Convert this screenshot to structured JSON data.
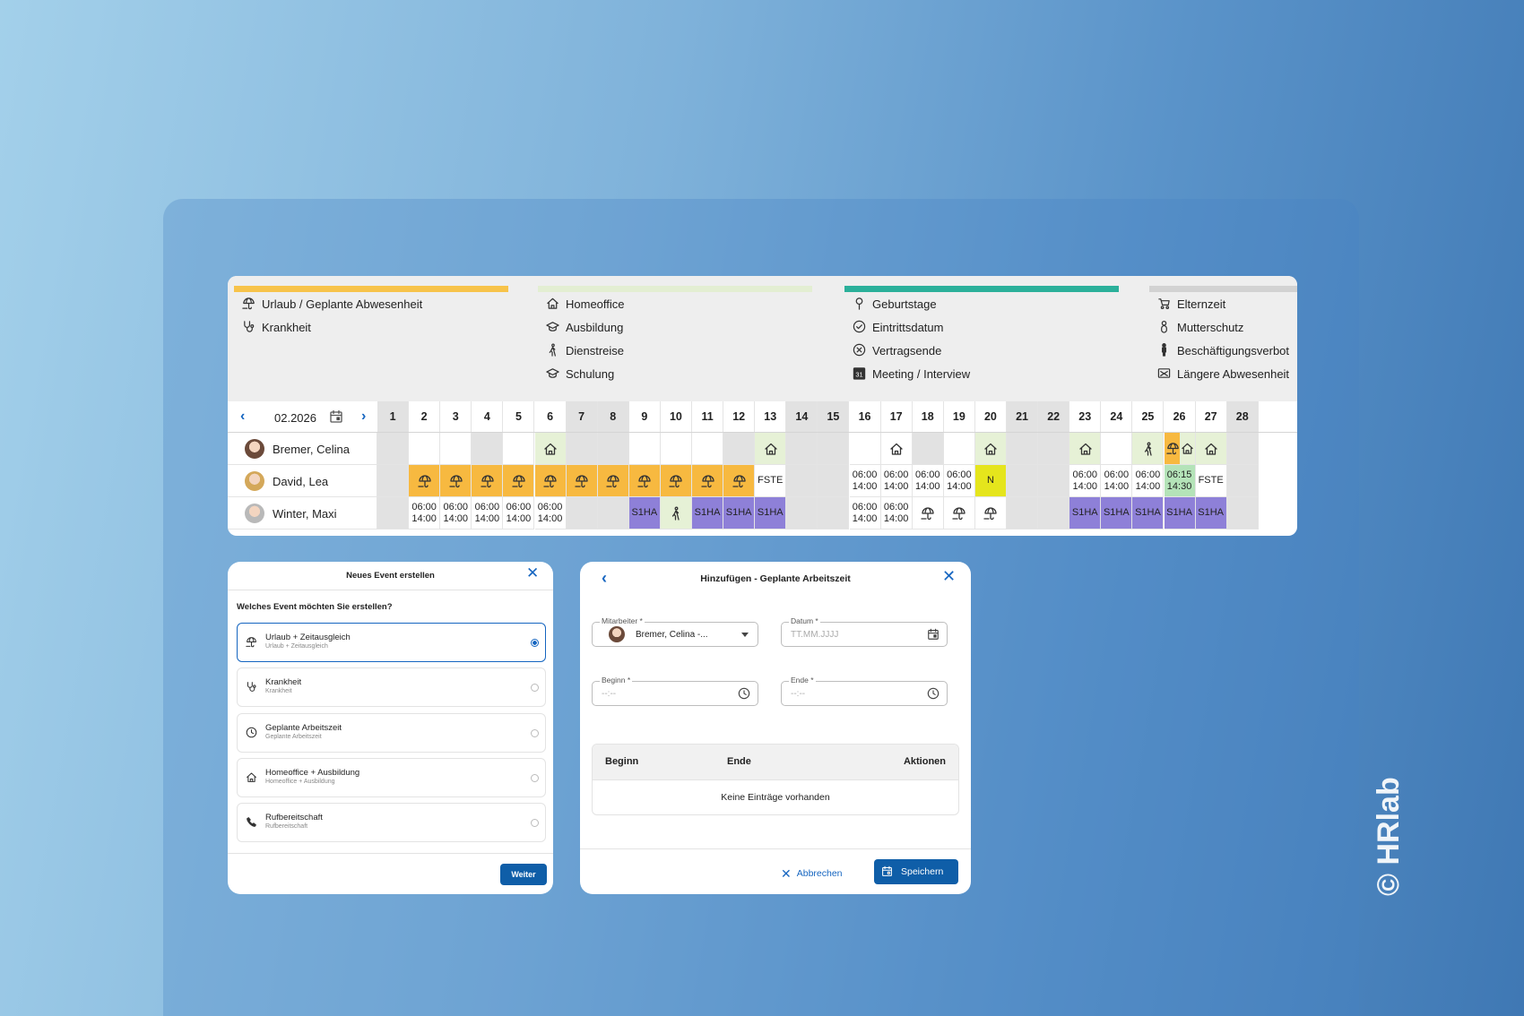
{
  "legend": [
    {
      "color": "#f7c34a",
      "items": [
        {
          "icon": "umbrella",
          "label": "Urlaub / Geplante Abwesenheit"
        },
        {
          "icon": "steth",
          "label": "Krankheit"
        }
      ]
    },
    {
      "color": "#e3eed2",
      "items": [
        {
          "icon": "home",
          "label": "Homeoffice"
        },
        {
          "icon": "cap",
          "label": "Ausbildung"
        },
        {
          "icon": "walk",
          "label": "Dienstreise"
        },
        {
          "icon": "cap",
          "label": "Schulung"
        }
      ]
    },
    {
      "color": "#2bb09a",
      "items": [
        {
          "icon": "pin",
          "label": "Geburtstage"
        },
        {
          "icon": "check",
          "label": "Eintrittsdatum"
        },
        {
          "icon": "xcircle",
          "label": "Vertragsende"
        },
        {
          "icon": "cal31",
          "icon_text": "31",
          "label": "Meeting / Interview"
        }
      ]
    },
    {
      "color": "#d2d2d2",
      "items": [
        {
          "icon": "stroller",
          "label": "Elternzeit"
        },
        {
          "icon": "baby",
          "label": "Mutterschutz"
        },
        {
          "icon": "person",
          "label": "Beschäftigungsverbot"
        },
        {
          "icon": "absent",
          "label": "Längere Abwesenheit"
        }
      ]
    }
  ],
  "calendar": {
    "month": "02.2026",
    "days": [
      1,
      2,
      3,
      4,
      5,
      6,
      7,
      8,
      9,
      10,
      11,
      12,
      13,
      14,
      15,
      16,
      17,
      18,
      19,
      20,
      21,
      22,
      23,
      24,
      25,
      26,
      27,
      28
    ],
    "weekend": [
      1,
      7,
      8,
      14,
      15,
      21,
      22,
      28
    ],
    "weekend_color": "#e2e2e2",
    "rows": [
      {
        "name": "Bremer, Celina",
        "cells": [
          {
            "day": 4,
            "bg": "#e2e2e2"
          },
          {
            "day": 6,
            "bg": "#e6f1d6",
            "icon": "home"
          },
          {
            "day": 12,
            "bg": "#e2e2e2"
          },
          {
            "day": 13,
            "bg": "#e6f1d6",
            "icon": "home"
          },
          {
            "day": 17,
            "icon": "home"
          },
          {
            "day": 18,
            "bg": "#e2e2e2"
          },
          {
            "day": 20,
            "bg": "#e6f1d6",
            "icon": "home"
          },
          {
            "day": 23,
            "bg": "#e6f1d6",
            "icon": "home"
          },
          {
            "day": 25,
            "bg": "#e6f1d6",
            "icon": "walk"
          },
          {
            "day": 26,
            "bg": "#f7b940",
            "bg2": "#e6f1d6",
            "icon": "umbrella",
            "icon2": "home"
          },
          {
            "day": 27,
            "bg": "#e6f1d6",
            "icon": "home"
          }
        ]
      },
      {
        "name": "David, Lea",
        "cells": [
          {
            "day": 2,
            "bg": "#f7b940",
            "icon": "umbrella"
          },
          {
            "day": 3,
            "bg": "#f7b940",
            "icon": "umbrella"
          },
          {
            "day": 4,
            "bg": "#f7b940",
            "icon": "umbrella"
          },
          {
            "day": 5,
            "bg": "#f7b940",
            "icon": "umbrella"
          },
          {
            "day": 6,
            "bg": "#f7b940",
            "icon": "umbrella"
          },
          {
            "day": 7,
            "bg": "#f7b940",
            "icon": "umbrella"
          },
          {
            "day": 8,
            "bg": "#f7b940",
            "icon": "umbrella"
          },
          {
            "day": 9,
            "bg": "#f7b940",
            "icon": "umbrella"
          },
          {
            "day": 10,
            "bg": "#f7b940",
            "icon": "umbrella"
          },
          {
            "day": 11,
            "bg": "#f7b940",
            "icon": "umbrella"
          },
          {
            "day": 12,
            "bg": "#f7b940",
            "icon": "umbrella"
          },
          {
            "day": 13,
            "text": [
              "FSTE"
            ]
          },
          {
            "day": 16,
            "text": [
              "06:00",
              "14:00"
            ]
          },
          {
            "day": 17,
            "text": [
              "06:00",
              "14:00"
            ]
          },
          {
            "day": 18,
            "text": [
              "06:00",
              "14:00"
            ]
          },
          {
            "day": 19,
            "text": [
              "06:00",
              "14:00"
            ]
          },
          {
            "day": 20,
            "bg": "#e5e51c",
            "text": [
              "N"
            ]
          },
          {
            "day": 23,
            "text": [
              "06:00",
              "14:00"
            ]
          },
          {
            "day": 24,
            "text": [
              "06:00",
              "14:00"
            ]
          },
          {
            "day": 25,
            "text": [
              "06:00",
              "14:00"
            ]
          },
          {
            "day": 26,
            "bg": "#b4e3b8",
            "text": [
              "06:15",
              "14:30"
            ]
          },
          {
            "day": 27,
            "text": [
              "FSTE"
            ]
          }
        ]
      },
      {
        "name": "Winter, Maxi",
        "cells": [
          {
            "day": 2,
            "text": [
              "06:00",
              "14:00"
            ]
          },
          {
            "day": 3,
            "text": [
              "06:00",
              "14:00"
            ]
          },
          {
            "day": 4,
            "text": [
              "06:00",
              "14:00"
            ]
          },
          {
            "day": 5,
            "text": [
              "06:00",
              "14:00"
            ]
          },
          {
            "day": 6,
            "text": [
              "06:00",
              "14:00"
            ]
          },
          {
            "day": 9,
            "bg": "#8e80d8",
            "text": [
              "S1HA"
            ]
          },
          {
            "day": 10,
            "bg": "#e6f1d6",
            "icon": "walk"
          },
          {
            "day": 11,
            "bg": "#8e80d8",
            "text": [
              "S1HA"
            ]
          },
          {
            "day": 12,
            "bg": "#8e80d8",
            "text": [
              "S1HA"
            ]
          },
          {
            "day": 13,
            "bg": "#8e80d8",
            "text": [
              "S1HA"
            ]
          },
          {
            "day": 16,
            "text": [
              "06:00",
              "14:00"
            ]
          },
          {
            "day": 17,
            "text": [
              "06:00",
              "14:00"
            ]
          },
          {
            "day": 18,
            "icon": "umbrella"
          },
          {
            "day": 19,
            "icon": "umbrella"
          },
          {
            "day": 20,
            "icon": "umbrella"
          },
          {
            "day": 23,
            "bg": "#8e80d8",
            "text": [
              "S1HA"
            ]
          },
          {
            "day": 24,
            "bg": "#8e80d8",
            "text": [
              "S1HA"
            ]
          },
          {
            "day": 25,
            "bg": "#8e80d8",
            "text": [
              "S1HA"
            ]
          },
          {
            "day": 26,
            "bg": "#8e80d8",
            "text": [
              "S1HA"
            ]
          },
          {
            "day": 27,
            "bg": "#8e80d8",
            "text": [
              "S1HA"
            ]
          }
        ]
      }
    ]
  },
  "dialog_event": {
    "title": "Neues Event erstellen",
    "question": "Welches Event möchten Sie erstellen?",
    "options": [
      {
        "icon": "umbrella",
        "label": "Urlaub + Zeitausgleich",
        "sublabel": "Urlaub + Zeitausgleich",
        "selected": true
      },
      {
        "icon": "steth",
        "label": "Krankheit",
        "sublabel": "Krankheit",
        "selected": false
      },
      {
        "icon": "clock",
        "label": "Geplante Arbeitszeit",
        "sublabel": "Geplante Arbeitszeit",
        "selected": false
      },
      {
        "icon": "home",
        "label": "Homeoffice + Ausbildung",
        "sublabel": "Homeoffice + Ausbildung",
        "selected": false
      },
      {
        "icon": "phone",
        "label": "Rufbereitschaft",
        "sublabel": "Rufbereitschaft",
        "selected": false
      }
    ],
    "button": "Weiter"
  },
  "dialog_worktime": {
    "title": "Hinzufügen - Geplante Arbeitszeit",
    "fields": [
      {
        "label": "Mitarbeiter *",
        "value": "Bremer, Celina -..."
      },
      {
        "label": "Datum *",
        "placeholder": "TT.MM.JJJJ",
        "icon": "cal"
      },
      {
        "label": "Beginn *",
        "placeholder": "--:--",
        "icon": "clock"
      },
      {
        "label": "Ende *",
        "placeholder": "--:--",
        "icon": "clock"
      }
    ],
    "table_headers": [
      "Beginn",
      "Ende",
      "Aktionen"
    ],
    "empty_text": "Keine Einträge vorhanden",
    "cancel": "Abbrechen",
    "save": "Speichern"
  },
  "watermark": "© HRlab"
}
